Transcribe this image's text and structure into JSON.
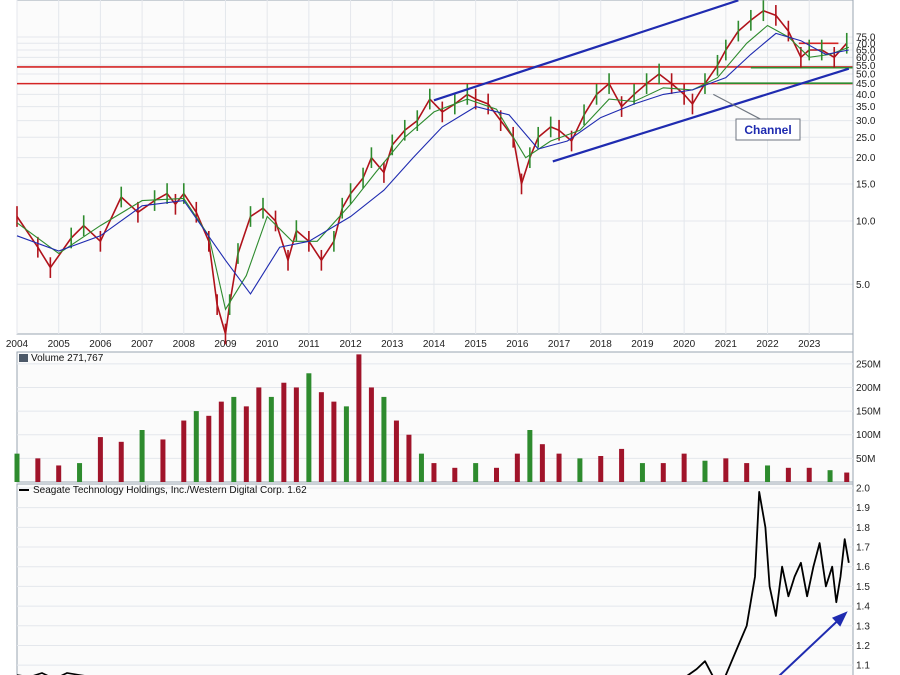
{
  "chart_data": [
    {
      "type": "line",
      "panel": "price",
      "scale": "log",
      "ylim": [
        2.9,
        110
      ],
      "xlim": [
        2004.0,
        2024.05
      ],
      "x_ticks": [
        "2004",
        "2005",
        "2006",
        "2007",
        "2008",
        "2009",
        "2010",
        "2011",
        "2012",
        "2013",
        "2014",
        "2015",
        "2016",
        "2017",
        "2018",
        "2019",
        "2020",
        "2021",
        "2022",
        "2023"
      ],
      "y_ticks": [
        "5.0",
        "10.0",
        "15.0",
        "20.0",
        "25.0",
        "30.0",
        "35.0",
        "40.0",
        "45.0",
        "50.0",
        "55.0",
        "60.0",
        "65.0",
        "70.0",
        "75.0"
      ],
      "grid": true,
      "series": [
        {
          "style": "candles",
          "color": "#b0121b",
          "x": [
            2004.0,
            2004.5,
            2004.8,
            2005.3,
            2005.6,
            2006.0,
            2006.5,
            2006.9,
            2007.3,
            2007.6,
            2007.8,
            2008.0,
            2008.3,
            2008.6,
            2008.8,
            2009.0,
            2009.1,
            2009.3,
            2009.6,
            2009.9,
            2010.2,
            2010.5,
            2010.7,
            2011.0,
            2011.3,
            2011.6,
            2011.8,
            2012.0,
            2012.3,
            2012.5,
            2012.8,
            2013.0,
            2013.3,
            2013.6,
            2013.9,
            2014.2,
            2014.5,
            2014.8,
            2015.0,
            2015.3,
            2015.6,
            2015.9,
            2016.1,
            2016.3,
            2016.5,
            2016.8,
            2017.0,
            2017.3,
            2017.6,
            2017.9,
            2018.2,
            2018.5,
            2018.8,
            2019.1,
            2019.4,
            2019.7,
            2020.0,
            2020.2,
            2020.5,
            2020.8,
            2021.0,
            2021.3,
            2021.6,
            2021.9,
            2022.2,
            2022.5,
            2022.8,
            2023.0,
            2023.3,
            2023.6,
            2023.9
          ],
          "values": [
            10.5,
            7.5,
            6.0,
            8.3,
            9.5,
            8.0,
            13.0,
            11.0,
            12.5,
            13.5,
            12.0,
            13.5,
            11.0,
            8.0,
            4.0,
            2.9,
            4.0,
            7.0,
            10.5,
            11.5,
            10.0,
            6.5,
            9.0,
            8.0,
            6.5,
            8.0,
            11.5,
            13.5,
            16.0,
            20.0,
            17.0,
            23.0,
            27.0,
            30.0,
            38.0,
            33.0,
            36.0,
            40.0,
            38.0,
            36.0,
            30.0,
            25.0,
            15.0,
            20.0,
            25.0,
            28.0,
            27.0,
            24.0,
            32.0,
            40.0,
            45.0,
            35.0,
            40.0,
            45.0,
            50.0,
            45.0,
            40.0,
            36.0,
            45.0,
            55.0,
            65.0,
            80.0,
            90.0,
            100.0,
            95.0,
            80.0,
            60.0,
            65.0,
            65.0,
            60.0,
            70.0
          ]
        },
        {
          "style": "line",
          "color": "#2e8b2e",
          "x": [
            2004.0,
            2005.0,
            2006.0,
            2007.0,
            2008.0,
            2008.6,
            2009.0,
            2009.5,
            2010.0,
            2010.6,
            2011.2,
            2012.0,
            2012.6,
            2013.3,
            2014.0,
            2014.8,
            2015.5,
            2016.2,
            2016.8,
            2017.5,
            2018.2,
            2018.8,
            2019.5,
            2020.2,
            2020.8,
            2021.5,
            2022.0,
            2022.5,
            2023.0,
            2023.5,
            2023.95
          ],
          "values": [
            9.8,
            7.0,
            9.5,
            12.5,
            12.8,
            8.5,
            3.8,
            5.5,
            10.5,
            8.0,
            8.0,
            12.0,
            17.0,
            25.0,
            33.0,
            38.0,
            34.0,
            20.0,
            24.0,
            27.0,
            38.0,
            37.0,
            43.0,
            42.0,
            48.0,
            70.0,
            85.0,
            75.0,
            60.0,
            62.0,
            67.0
          ]
        },
        {
          "style": "line",
          "color": "#1f2bb0",
          "x": [
            2004.0,
            2005.0,
            2006.0,
            2007.0,
            2008.0,
            2009.0,
            2009.6,
            2010.3,
            2011.0,
            2012.0,
            2012.8,
            2013.5,
            2014.2,
            2015.0,
            2015.8,
            2016.5,
            2017.2,
            2018.0,
            2018.8,
            2019.5,
            2020.2,
            2021.0,
            2021.6,
            2022.2,
            2022.8,
            2023.4,
            2023.95
          ],
          "values": [
            8.5,
            7.2,
            8.5,
            11.8,
            12.5,
            6.5,
            4.5,
            7.5,
            8.0,
            10.5,
            14.0,
            20.0,
            28.0,
            35.0,
            32.0,
            22.0,
            24.0,
            31.0,
            36.0,
            40.0,
            42.0,
            48.0,
            62.0,
            78.0,
            72.0,
            62.0,
            65.0
          ]
        }
      ],
      "trendlines": [
        {
          "color": "#1f2bb0",
          "x": [
            2014.0,
            2021.3
          ],
          "values": [
            37.5,
            112.0
          ]
        },
        {
          "color": "#1f2bb0",
          "x": [
            2016.85,
            2023.95
          ],
          "values": [
            19.2,
            53.0
          ]
        }
      ],
      "hlines": [
        {
          "color": "#d42424",
          "value": 54.0
        },
        {
          "color": "#d42424",
          "value": 45.0
        },
        {
          "color": "#2e8b2e",
          "value": 45.2,
          "x_from": 2020.8
        },
        {
          "color": "#2e8b2e",
          "value": 53.6,
          "x_from": 2021.6
        },
        {
          "color": "#d42424",
          "value": 70.0,
          "x_from": 2022.75,
          "x_to": 2023.7
        }
      ],
      "annotation": {
        "text": "Channel",
        "arrow_to_x": 2020.7,
        "arrow_to_value": 40.0
      }
    },
    {
      "type": "bar",
      "panel": "volume",
      "legend": "Volume 271,767",
      "ylim": [
        0,
        275
      ],
      "y_ticks": [
        "50M",
        "100M",
        "150M",
        "200M",
        "250M"
      ],
      "y_tick_values": [
        50,
        100,
        150,
        200,
        250
      ],
      "x": [
        2004.0,
        2004.5,
        2005.0,
        2005.5,
        2006.0,
        2006.5,
        2007.0,
        2007.5,
        2008.0,
        2008.3,
        2008.6,
        2008.9,
        2009.2,
        2009.5,
        2009.8,
        2010.1,
        2010.4,
        2010.7,
        2011.0,
        2011.3,
        2011.6,
        2011.9,
        2012.2,
        2012.5,
        2012.8,
        2013.1,
        2013.4,
        2013.7,
        2014.0,
        2014.5,
        2015.0,
        2015.5,
        2016.0,
        2016.3,
        2016.6,
        2017.0,
        2017.5,
        2018.0,
        2018.5,
        2019.0,
        2019.5,
        2020.0,
        2020.5,
        2021.0,
        2021.5,
        2022.0,
        2022.5,
        2023.0,
        2023.5,
        2023.9
      ],
      "values": [
        60,
        50,
        35,
        40,
        95,
        85,
        110,
        90,
        130,
        150,
        140,
        170,
        180,
        160,
        200,
        180,
        210,
        200,
        230,
        190,
        170,
        160,
        270,
        200,
        180,
        130,
        100,
        60,
        40,
        30,
        40,
        30,
        60,
        110,
        80,
        60,
        50,
        55,
        70,
        40,
        40,
        60,
        45,
        50,
        40,
        35,
        30,
        30,
        25,
        20
      ],
      "colors": [
        "#a0142a",
        "#2e8b2e"
      ]
    },
    {
      "type": "line",
      "panel": "ratio",
      "legend": "Seagate Technology Holdings, Inc./Western Digital Corp. 1.62",
      "ylim": [
        1.05,
        2.0
      ],
      "y_ticks": [
        "1.1",
        "1.2",
        "1.3",
        "1.4",
        "1.5",
        "1.6",
        "1.7",
        "1.8",
        "1.9",
        "2.0"
      ],
      "y_tick_values": [
        1.1,
        1.2,
        1.3,
        1.4,
        1.5,
        1.6,
        1.7,
        1.8,
        1.9,
        2.0
      ],
      "series": [
        {
          "color": "#000000",
          "x": [
            2004.0,
            2004.3,
            2004.6,
            2004.9,
            2005.2,
            2005.5,
            2005.8,
            2006.0,
            2019.9,
            2020.1,
            2020.3,
            2020.5,
            2020.7,
            2020.9,
            2021.1,
            2021.3,
            2021.5,
            2021.7,
            2021.8,
            2021.95,
            2022.05,
            2022.2,
            2022.35,
            2022.5,
            2022.65,
            2022.8,
            2022.95,
            2023.1,
            2023.25,
            2023.4,
            2023.55,
            2023.65,
            2023.75,
            2023.85,
            2023.95
          ],
          "values": [
            1.05,
            1.04,
            1.06,
            1.03,
            1.06,
            1.05,
            1.04,
            1.02,
            1.02,
            1.05,
            1.08,
            1.12,
            1.04,
            1.0,
            1.1,
            1.2,
            1.3,
            1.55,
            1.98,
            1.8,
            1.5,
            1.35,
            1.6,
            1.45,
            1.55,
            1.62,
            1.45,
            1.6,
            1.72,
            1.5,
            1.6,
            1.42,
            1.55,
            1.74,
            1.62
          ]
        }
      ],
      "arrow": {
        "color": "#1f2bb0",
        "x": [
          2022.15,
          2023.95
        ],
        "values": [
          1.02,
          1.36
        ]
      }
    }
  ]
}
